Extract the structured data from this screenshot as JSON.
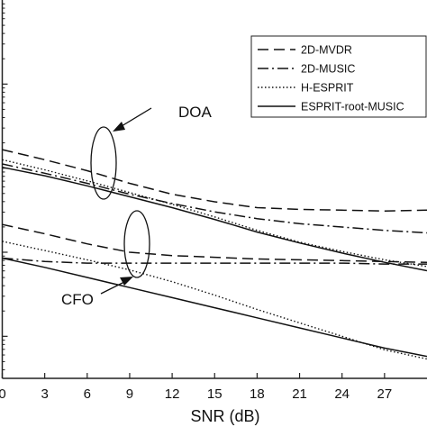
{
  "chart_data": {
    "type": "line",
    "title": "",
    "xlabel": "SNR (dB)",
    "ylabel": "",
    "xlim": [
      0,
      30
    ],
    "ylim_log10": [
      -3.5,
      1.0
    ],
    "x_ticks": [
      0,
      3,
      6,
      9,
      12,
      15,
      18,
      21,
      24,
      27
    ],
    "x_tick_labels": [
      "0",
      "3",
      "6",
      "9",
      "12",
      "15",
      "18",
      "21",
      "24",
      "27"
    ],
    "y_tick_log10": [
      -3,
      -2,
      -1,
      0
    ],
    "legend": {
      "position": "top-right",
      "entries": [
        {
          "label": "2D-MVDR",
          "style": "dashed"
        },
        {
          "label": "2D-MUSIC",
          "style": "dashdot"
        },
        {
          "label": "H-ESPRIT",
          "style": "dotted"
        },
        {
          "label": "ESPRIT-root-MUSIC",
          "style": "solid"
        }
      ]
    },
    "annotations": [
      {
        "text": "DOA",
        "group": "upper"
      },
      {
        "text": "CFO",
        "group": "lower"
      }
    ],
    "groups": [
      {
        "annotation": "DOA",
        "series": [
          {
            "style": "dashed",
            "x": [
              0,
              3,
              6,
              9,
              12,
              15,
              18,
              21,
              24,
              27,
              30
            ],
            "log10_y": [
              -0.78,
              -0.9,
              -1.03,
              -1.18,
              -1.31,
              -1.4,
              -1.47,
              -1.49,
              -1.5,
              -1.51,
              -1.5
            ]
          },
          {
            "style": "dashdot",
            "x": [
              0,
              3,
              6,
              9,
              12,
              15,
              18,
              21,
              24,
              27,
              30
            ],
            "log10_y": [
              -0.95,
              -1.06,
              -1.18,
              -1.31,
              -1.42,
              -1.52,
              -1.6,
              -1.66,
              -1.7,
              -1.74,
              -1.77
            ]
          },
          {
            "style": "dotted",
            "x": [
              0,
              3,
              6,
              9,
              12,
              15,
              18,
              21,
              24,
              27,
              30
            ],
            "log10_y": [
              -0.9,
              -1.02,
              -1.15,
              -1.29,
              -1.43,
              -1.58,
              -1.74,
              -1.88,
              -1.99,
              -2.09,
              -2.17
            ]
          },
          {
            "style": "solid",
            "x": [
              0,
              3,
              6,
              9,
              12,
              15,
              18,
              21,
              24,
              27,
              30
            ],
            "log10_y": [
              -0.99,
              -1.09,
              -1.21,
              -1.34,
              -1.47,
              -1.61,
              -1.76,
              -1.89,
              -2.01,
              -2.12,
              -2.22
            ]
          }
        ]
      },
      {
        "annotation": "CFO",
        "series": [
          {
            "style": "dashed",
            "x": [
              0,
              3,
              6,
              9,
              12,
              15,
              18,
              21,
              24,
              27,
              30
            ],
            "log10_y": [
              -1.67,
              -1.78,
              -1.9,
              -2.0,
              -2.04,
              -2.06,
              -2.08,
              -2.09,
              -2.1,
              -2.11,
              -2.12
            ]
          },
          {
            "style": "dashdot",
            "x": [
              0,
              3,
              6,
              9,
              12,
              15,
              18,
              21,
              24,
              27,
              30
            ],
            "log10_y": [
              -2.07,
              -2.11,
              -2.13,
              -2.13,
              -2.13,
              -2.13,
              -2.13,
              -2.13,
              -2.13,
              -2.14,
              -2.14
            ]
          },
          {
            "style": "dotted",
            "x": [
              0,
              3,
              6,
              9,
              12,
              15,
              18,
              21,
              24,
              27,
              30
            ],
            "log10_y": [
              -1.87,
              -1.98,
              -2.09,
              -2.21,
              -2.35,
              -2.51,
              -2.68,
              -2.84,
              -3.0,
              -3.16,
              -3.27
            ]
          },
          {
            "style": "solid",
            "x": [
              0,
              3,
              6,
              9,
              12,
              15,
              18,
              21,
              24,
              27,
              30
            ],
            "log10_y": [
              -2.07,
              -2.18,
              -2.3,
              -2.42,
              -2.54,
              -2.66,
              -2.78,
              -2.9,
              -3.02,
              -3.14,
              -3.24
            ]
          }
        ]
      }
    ]
  }
}
